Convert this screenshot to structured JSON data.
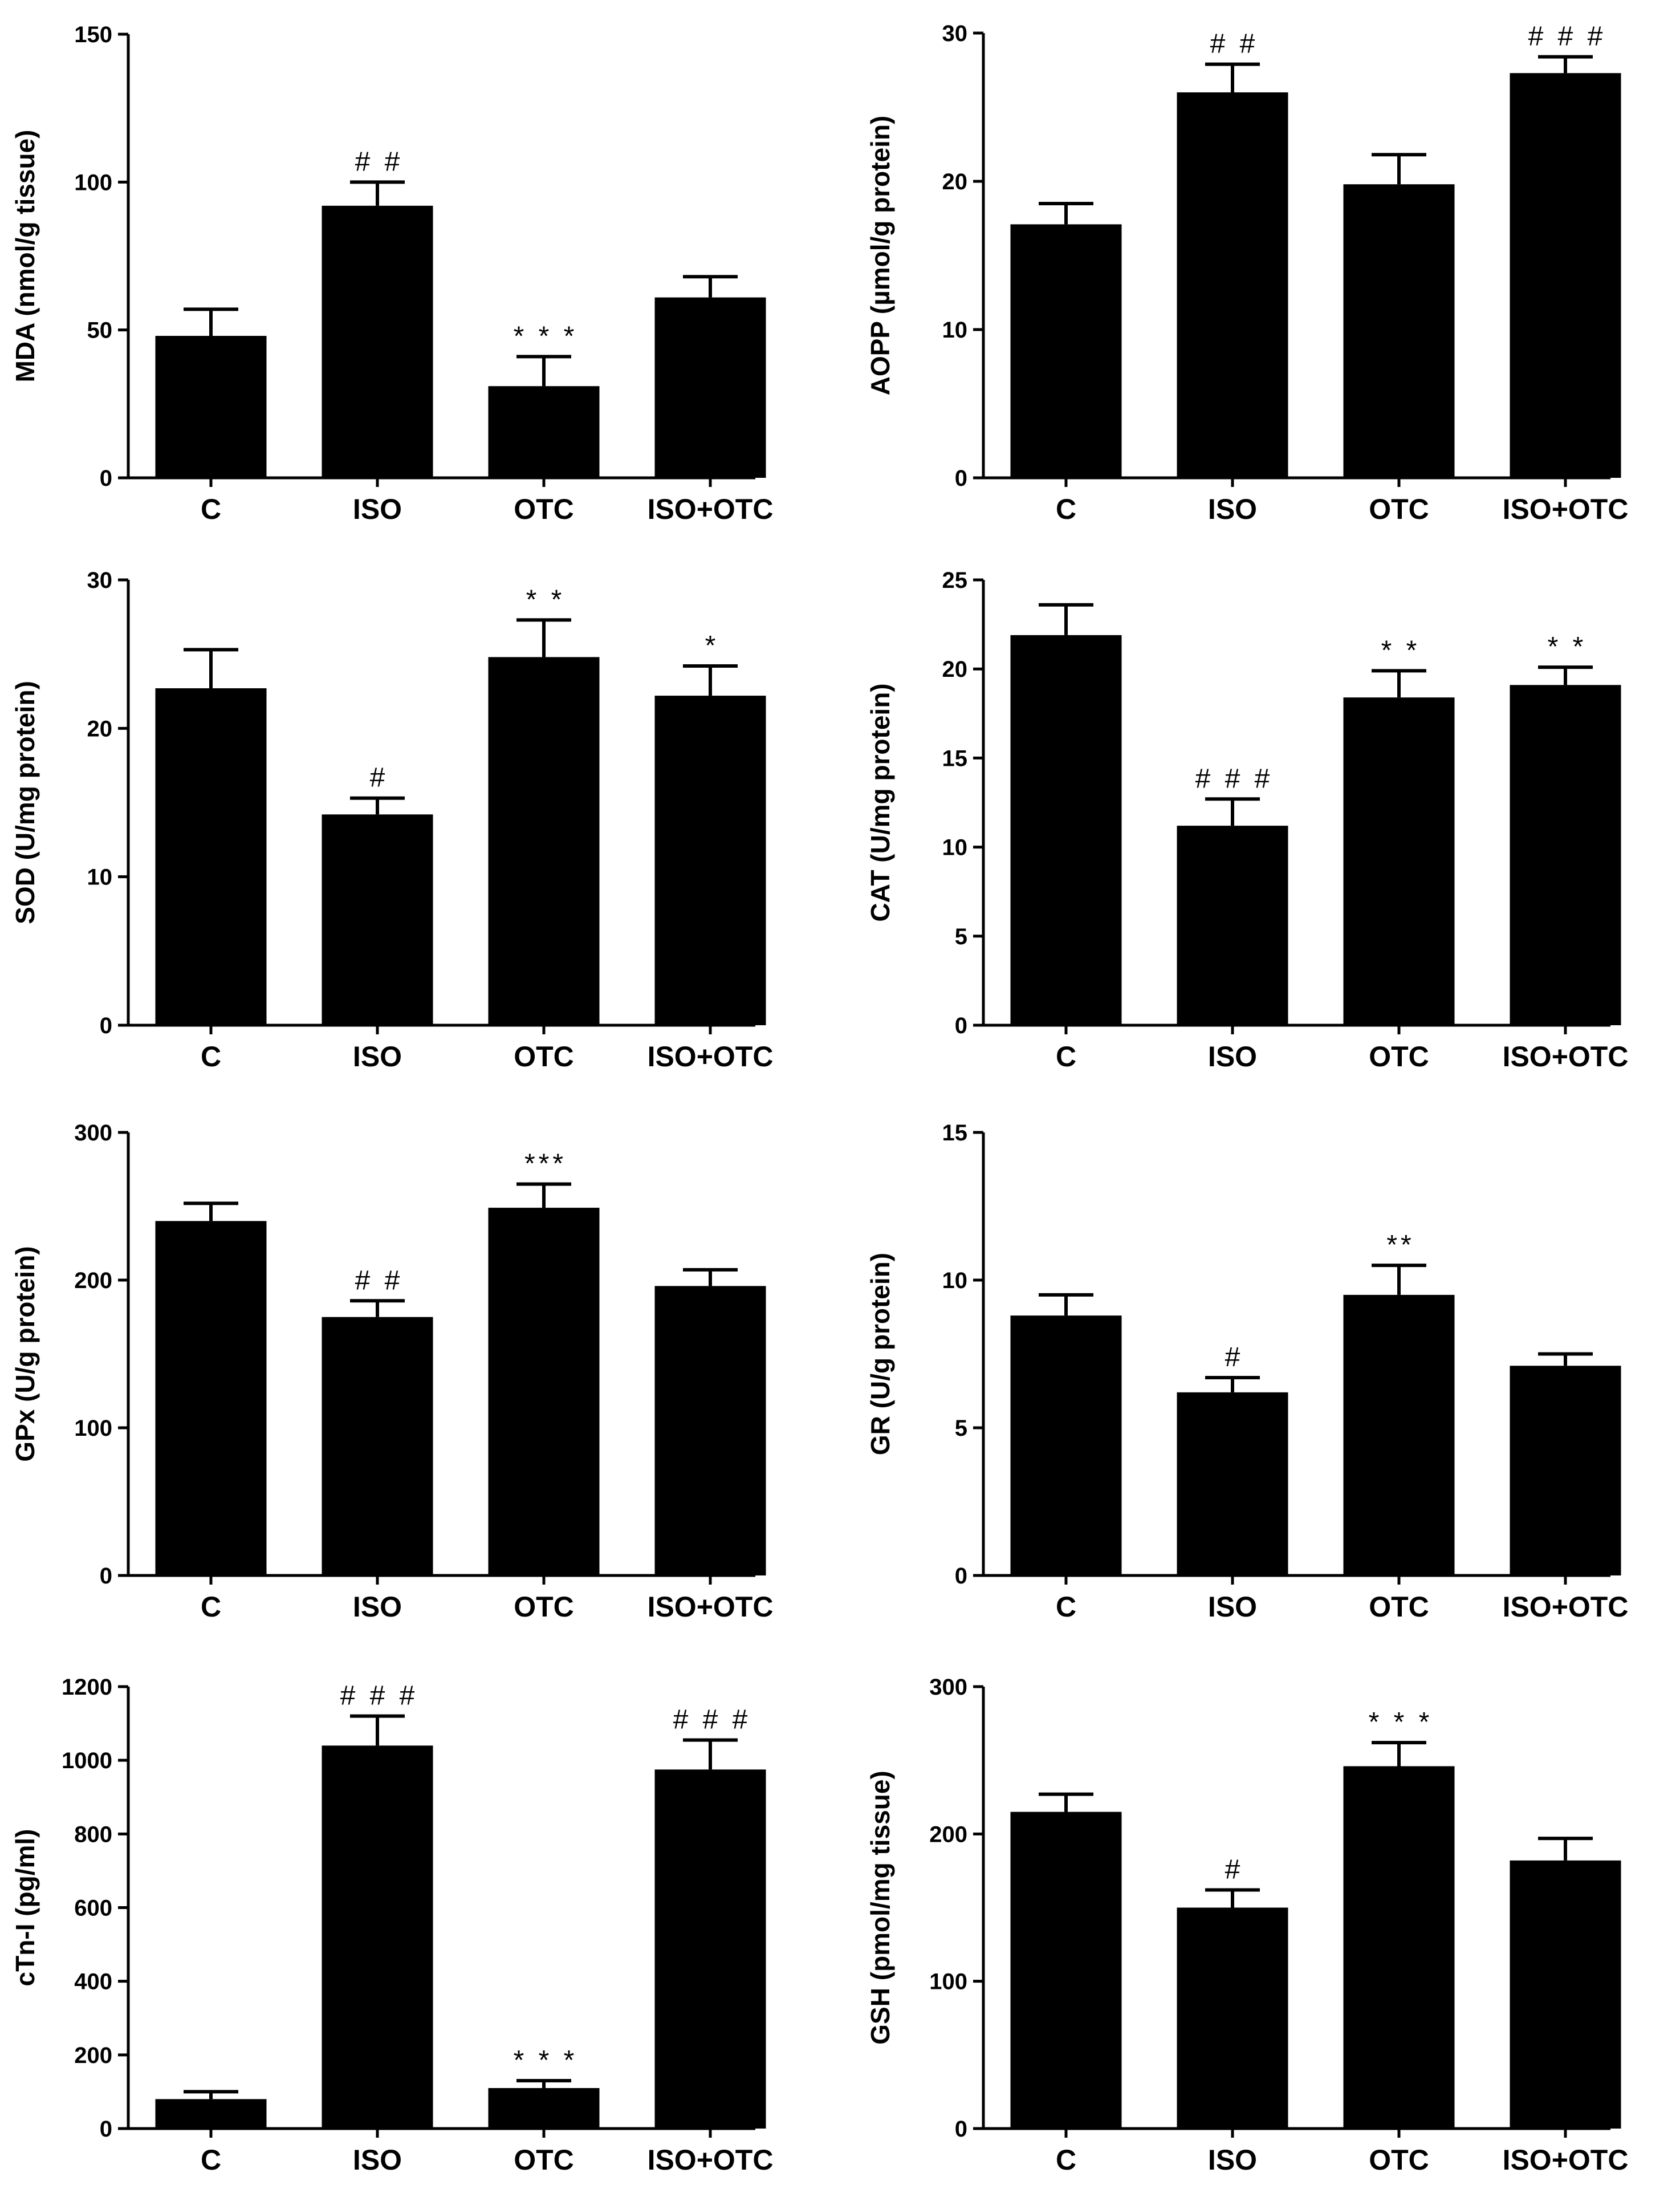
{
  "chart_data": [
    {
      "type": "bar",
      "ylabel": "MDA (nmol/g tissue)",
      "categories": [
        "C",
        "ISO",
        "OTC",
        "ISO+OTC"
      ],
      "values": [
        48,
        92,
        31,
        61
      ],
      "errors": [
        9,
        8,
        10,
        7
      ],
      "annotations": [
        "",
        "# #",
        "* * *",
        ""
      ],
      "yticks": [
        "0",
        "50",
        "100",
        "150"
      ],
      "ylim": [
        0,
        150
      ]
    },
    {
      "type": "bar",
      "ylabel": "AOPP (µmol/g protein)",
      "categories": [
        "C",
        "ISO",
        "OTC",
        "ISO+OTC"
      ],
      "values": [
        17.1,
        26.0,
        19.8,
        27.3
      ],
      "errors": [
        1.4,
        1.9,
        2.0,
        1.1
      ],
      "annotations": [
        "",
        "# #",
        "",
        "# # #"
      ],
      "yticks": [
        "0",
        "10",
        "20",
        "30"
      ],
      "ylim": [
        0,
        30
      ]
    },
    {
      "type": "bar",
      "ylabel": "SOD (U/mg protein)",
      "categories": [
        "C",
        "ISO",
        "OTC",
        "ISO+OTC"
      ],
      "values": [
        22.7,
        14.2,
        24.8,
        22.2
      ],
      "errors": [
        2.6,
        1.1,
        2.5,
        2.0
      ],
      "annotations": [
        "",
        "#",
        "* *",
        "*"
      ],
      "yticks": [
        "0",
        "10",
        "20",
        "30"
      ],
      "ylim": [
        0,
        30
      ]
    },
    {
      "type": "bar",
      "ylabel": "CAT (U/mg protein)",
      "categories": [
        "C",
        "ISO",
        "OTC",
        "ISO+OTC"
      ],
      "values": [
        21.9,
        11.2,
        18.4,
        19.1
      ],
      "errors": [
        1.7,
        1.5,
        1.5,
        1.0
      ],
      "annotations": [
        "",
        "# # #",
        "* *",
        "* *"
      ],
      "yticks": [
        "0",
        "5",
        "10",
        "15",
        "20",
        "25"
      ],
      "ylim": [
        0,
        25
      ]
    },
    {
      "type": "bar",
      "ylabel": "GPx (U/g protein)",
      "categories": [
        "C",
        "ISO",
        "OTC",
        "ISO+OTC"
      ],
      "values": [
        240,
        175,
        249,
        196
      ],
      "errors": [
        12,
        11,
        16,
        11
      ],
      "annotations": [
        "",
        "# #",
        "***",
        ""
      ],
      "yticks": [
        "0",
        "100",
        "200",
        "300"
      ],
      "ylim": [
        0,
        300
      ]
    },
    {
      "type": "bar",
      "ylabel": "GR (U/g protein)",
      "categories": [
        "C",
        "ISO",
        "OTC",
        "ISO+OTC"
      ],
      "values": [
        8.8,
        6.2,
        9.5,
        7.1
      ],
      "errors": [
        0.7,
        0.5,
        1.0,
        0.4
      ],
      "annotations": [
        "",
        "#",
        "**",
        ""
      ],
      "yticks": [
        "0",
        "5",
        "10",
        "15"
      ],
      "ylim": [
        0,
        15
      ]
    },
    {
      "type": "bar",
      "ylabel": "cTn-I (pg/ml)",
      "categories": [
        "C",
        "ISO",
        "OTC",
        "ISO+OTC"
      ],
      "values": [
        80,
        1040,
        110,
        975
      ],
      "errors": [
        20,
        80,
        20,
        80
      ],
      "annotations": [
        "",
        "# # #",
        "* * *",
        "# # #"
      ],
      "yticks": [
        "0",
        "200",
        "400",
        "600",
        "800",
        "1000",
        "1200"
      ],
      "ylim": [
        0,
        1200
      ]
    },
    {
      "type": "bar",
      "ylabel": "GSH (pmol/mg tissue)",
      "categories": [
        "C",
        "ISO",
        "OTC",
        "ISO+OTC"
      ],
      "values": [
        215,
        150,
        246,
        182
      ],
      "errors": [
        12,
        12,
        16,
        15
      ],
      "annotations": [
        "",
        "#",
        "* * *",
        ""
      ],
      "yticks": [
        "0",
        "100",
        "200",
        "300"
      ],
      "ylim": [
        0,
        300
      ]
    }
  ]
}
